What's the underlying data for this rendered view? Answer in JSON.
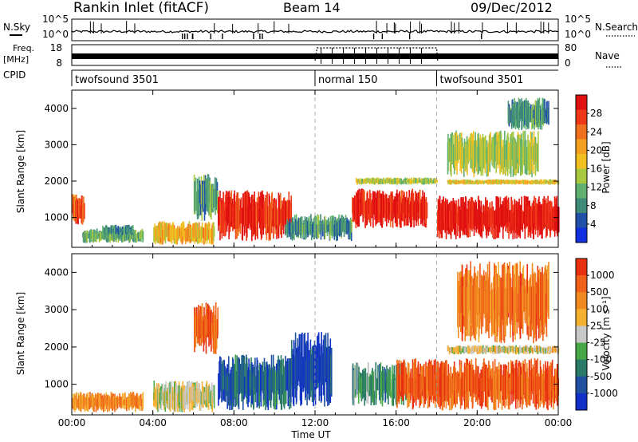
{
  "header": {
    "title": "Rankin Inlet (fitACF)",
    "beam": "Beam 14",
    "date": "09/Dec/2012"
  },
  "noise_panel": {
    "left_label": "N.Sky",
    "right_label": "N.Search",
    "left_ticks": [
      "10^5",
      "10^0"
    ],
    "right_ticks": [
      "10^5",
      "10^0"
    ]
  },
  "freq_panel": {
    "left_label_1": "Freq.",
    "left_label_2": "[MHz]",
    "right_label": "Nave",
    "left_ticks": [
      "18",
      "8"
    ],
    "right_ticks": [
      "80",
      "0"
    ]
  },
  "cpid_panel": {
    "label": "CPID",
    "segments": [
      {
        "name": "twofsound 3501",
        "start_hour": 0,
        "end_hour": 12
      },
      {
        "name": "normal 150",
        "start_hour": 12,
        "end_hour": 18
      },
      {
        "name": "twofsound 3501",
        "start_hour": 18,
        "end_hour": 24
      }
    ]
  },
  "chart_data": [
    {
      "type": "heatmap",
      "name": "power",
      "ylabel": "Slant Range [km]",
      "y_ticks": [
        "1000",
        "2000",
        "3000",
        "4000"
      ],
      "ylim": [
        180,
        4500
      ],
      "xlim": [
        0,
        24
      ],
      "x_ticks": [
        "00:00",
        "04:00",
        "08:00",
        "12:00",
        "16:00",
        "20:00",
        "00:00"
      ],
      "colorbar": {
        "label": "Power [dB]",
        "ticks": [
          "4",
          "8",
          "12",
          "16",
          "20",
          "24",
          "28"
        ],
        "colors": [
          "#1030e0",
          "#2050a8",
          "#3f8a78",
          "#60b070",
          "#a8c840",
          "#f0c020",
          "#f5a020",
          "#f07020",
          "#f03818",
          "#e01010"
        ]
      },
      "regions": [
        {
          "t": [
            0.0,
            0.6
          ],
          "r": [
            800,
            1650
          ],
          "level": 0.8
        },
        {
          "t": [
            0.5,
            3.5
          ],
          "r": [
            300,
            700
          ],
          "level": 0.35
        },
        {
          "t": [
            1.5,
            3.0
          ],
          "r": [
            500,
            800
          ],
          "level": 0.25
        },
        {
          "t": [
            4.0,
            7.0
          ],
          "r": [
            250,
            900
          ],
          "level": 0.62
        },
        {
          "t": [
            6.0,
            7.2
          ],
          "r": [
            900,
            2200
          ],
          "level": 0.3
        },
        {
          "t": [
            7.2,
            10.8
          ],
          "r": [
            350,
            1750
          ],
          "level": 0.9
        },
        {
          "t": [
            10.5,
            13.8
          ],
          "r": [
            350,
            1100
          ],
          "level": 0.28
        },
        {
          "t": [
            13.8,
            17.5
          ],
          "r": [
            700,
            1800
          ],
          "level": 0.92
        },
        {
          "t": [
            14.0,
            18.0
          ],
          "r": [
            1900,
            2100
          ],
          "level": 0.45
        },
        {
          "t": [
            18.0,
            24.0
          ],
          "r": [
            400,
            1600
          ],
          "level": 0.95
        },
        {
          "t": [
            18.5,
            24.0
          ],
          "r": [
            1900,
            2050
          ],
          "level": 0.55
        },
        {
          "t": [
            18.5,
            23.0
          ],
          "r": [
            2100,
            3400
          ],
          "level": 0.45
        },
        {
          "t": [
            21.5,
            23.5
          ],
          "r": [
            3400,
            4300
          ],
          "level": 0.3
        }
      ]
    },
    {
      "type": "heatmap",
      "name": "velocity",
      "ylabel": "Slant Range [km]",
      "xlabel": "Time UT",
      "y_ticks": [
        "1000",
        "2000",
        "3000",
        "4000"
      ],
      "ylim": [
        180,
        4500
      ],
      "xlim": [
        0,
        24
      ],
      "x_ticks": [
        "00:00",
        "04:00",
        "08:00",
        "12:00",
        "16:00",
        "20:00",
        "00:00"
      ],
      "colorbar": {
        "label": "Velocity [m s⁻¹]",
        "ticks": [
          "1000",
          "500",
          "100",
          "25",
          "-25",
          "-100",
          "-500",
          "-1000"
        ],
        "colors": [
          "#1030c8",
          "#2050a0",
          "#2a7a68",
          "#48a848",
          "#c8c8c8",
          "#f5b030",
          "#f08a20",
          "#f06018",
          "#e83010"
        ]
      },
      "regions": [
        {
          "t": [
            0.0,
            3.5
          ],
          "r": [
            250,
            800
          ],
          "level": 0.72
        },
        {
          "t": [
            4.0,
            7.0
          ],
          "r": [
            250,
            1100
          ],
          "level": 0.5
        },
        {
          "t": [
            6.0,
            7.2
          ],
          "r": [
            1800,
            3200
          ],
          "level": 0.85
        },
        {
          "t": [
            7.2,
            10.8
          ],
          "r": [
            300,
            1800
          ],
          "level": 0.2
        },
        {
          "t": [
            10.8,
            12.8
          ],
          "r": [
            400,
            2400
          ],
          "level": 0.1
        },
        {
          "t": [
            13.8,
            16.5
          ],
          "r": [
            400,
            1600
          ],
          "level": 0.35
        },
        {
          "t": [
            16.0,
            24.0
          ],
          "r": [
            300,
            1700
          ],
          "level": 0.85
        },
        {
          "t": [
            18.5,
            24.0
          ],
          "r": [
            1800,
            2050
          ],
          "level": 0.55
        },
        {
          "t": [
            19.0,
            23.5
          ],
          "r": [
            2100,
            4300
          ],
          "level": 0.78
        }
      ]
    }
  ]
}
